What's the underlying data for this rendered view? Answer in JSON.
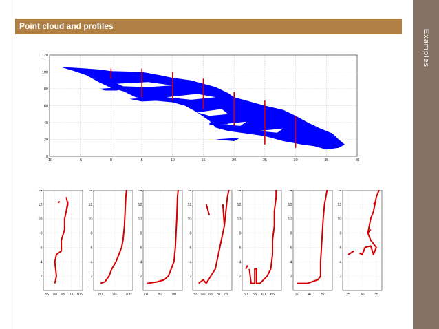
{
  "slide": {
    "title": "Point cloud and profiles",
    "section_label": "Examples"
  },
  "colors": {
    "title_bar": "#b07f43",
    "sidebar": "#857265",
    "point_cloud": "#0000ff",
    "profile": "#d10000"
  },
  "chart_data": [
    {
      "type": "scatter",
      "title": "",
      "xlim": [
        -10,
        40
      ],
      "ylim": [
        0,
        120
      ],
      "x_ticks": [
        "-10",
        "-5",
        "0",
        "5",
        "10",
        "15",
        "20",
        "25",
        "30",
        "35",
        "40"
      ],
      "y_ticks": [
        "0",
        "20",
        "40",
        "60",
        "80",
        "100",
        "120"
      ],
      "profile_lines_x": [
        0,
        5,
        10,
        15,
        20,
        25,
        30
      ],
      "grid": "on"
    },
    {
      "type": "line",
      "x_ticks": [
        "85",
        "90",
        "95",
        "100",
        "105"
      ],
      "y_ticks": [
        "2",
        "4",
        "6",
        "8",
        "10",
        "12",
        "14"
      ],
      "xlim": [
        83,
        107
      ],
      "ylim": [
        0,
        14
      ]
    },
    {
      "type": "line",
      "x_ticks": [
        "80",
        "90",
        "100"
      ],
      "y_ticks": [
        "2",
        "4",
        "6",
        "8",
        "10",
        "12",
        "14"
      ],
      "xlim": [
        75,
        103
      ],
      "ylim": [
        0,
        14
      ]
    },
    {
      "type": "line",
      "x_ticks": [
        "70",
        "80",
        "90"
      ],
      "y_ticks": [
        "2",
        "4",
        "6",
        "8",
        "10",
        "12",
        "14"
      ],
      "xlim": [
        68,
        96
      ],
      "ylim": [
        0,
        14
      ]
    },
    {
      "type": "line",
      "x_ticks": [
        "55",
        "60",
        "65",
        "70",
        "75"
      ],
      "y_ticks": [
        "2",
        "4",
        "6",
        "8",
        "10",
        "12",
        "14"
      ],
      "xlim": [
        53,
        79
      ],
      "ylim": [
        0,
        14
      ]
    },
    {
      "type": "line",
      "x_ticks": [
        "50",
        "55",
        "60",
        "65"
      ],
      "y_ticks": [
        "2",
        "4",
        "6",
        "8",
        "10",
        "12",
        "14"
      ],
      "xlim": [
        48,
        70
      ],
      "ylim": [
        0,
        14
      ]
    },
    {
      "type": "line",
      "x_ticks": [
        "30",
        "40",
        "50"
      ],
      "y_ticks": [
        "2",
        "4",
        "6",
        "8",
        "10",
        "12",
        "14"
      ],
      "xlim": [
        27,
        57
      ],
      "ylim": [
        0,
        14
      ]
    },
    {
      "type": "line",
      "x_ticks": [
        "25",
        "30",
        "35"
      ],
      "y_ticks": [
        "2",
        "4",
        "6",
        "8",
        "10",
        "12",
        "14"
      ],
      "xlim": [
        23,
        37
      ],
      "ylim": [
        0,
        14
      ]
    }
  ]
}
